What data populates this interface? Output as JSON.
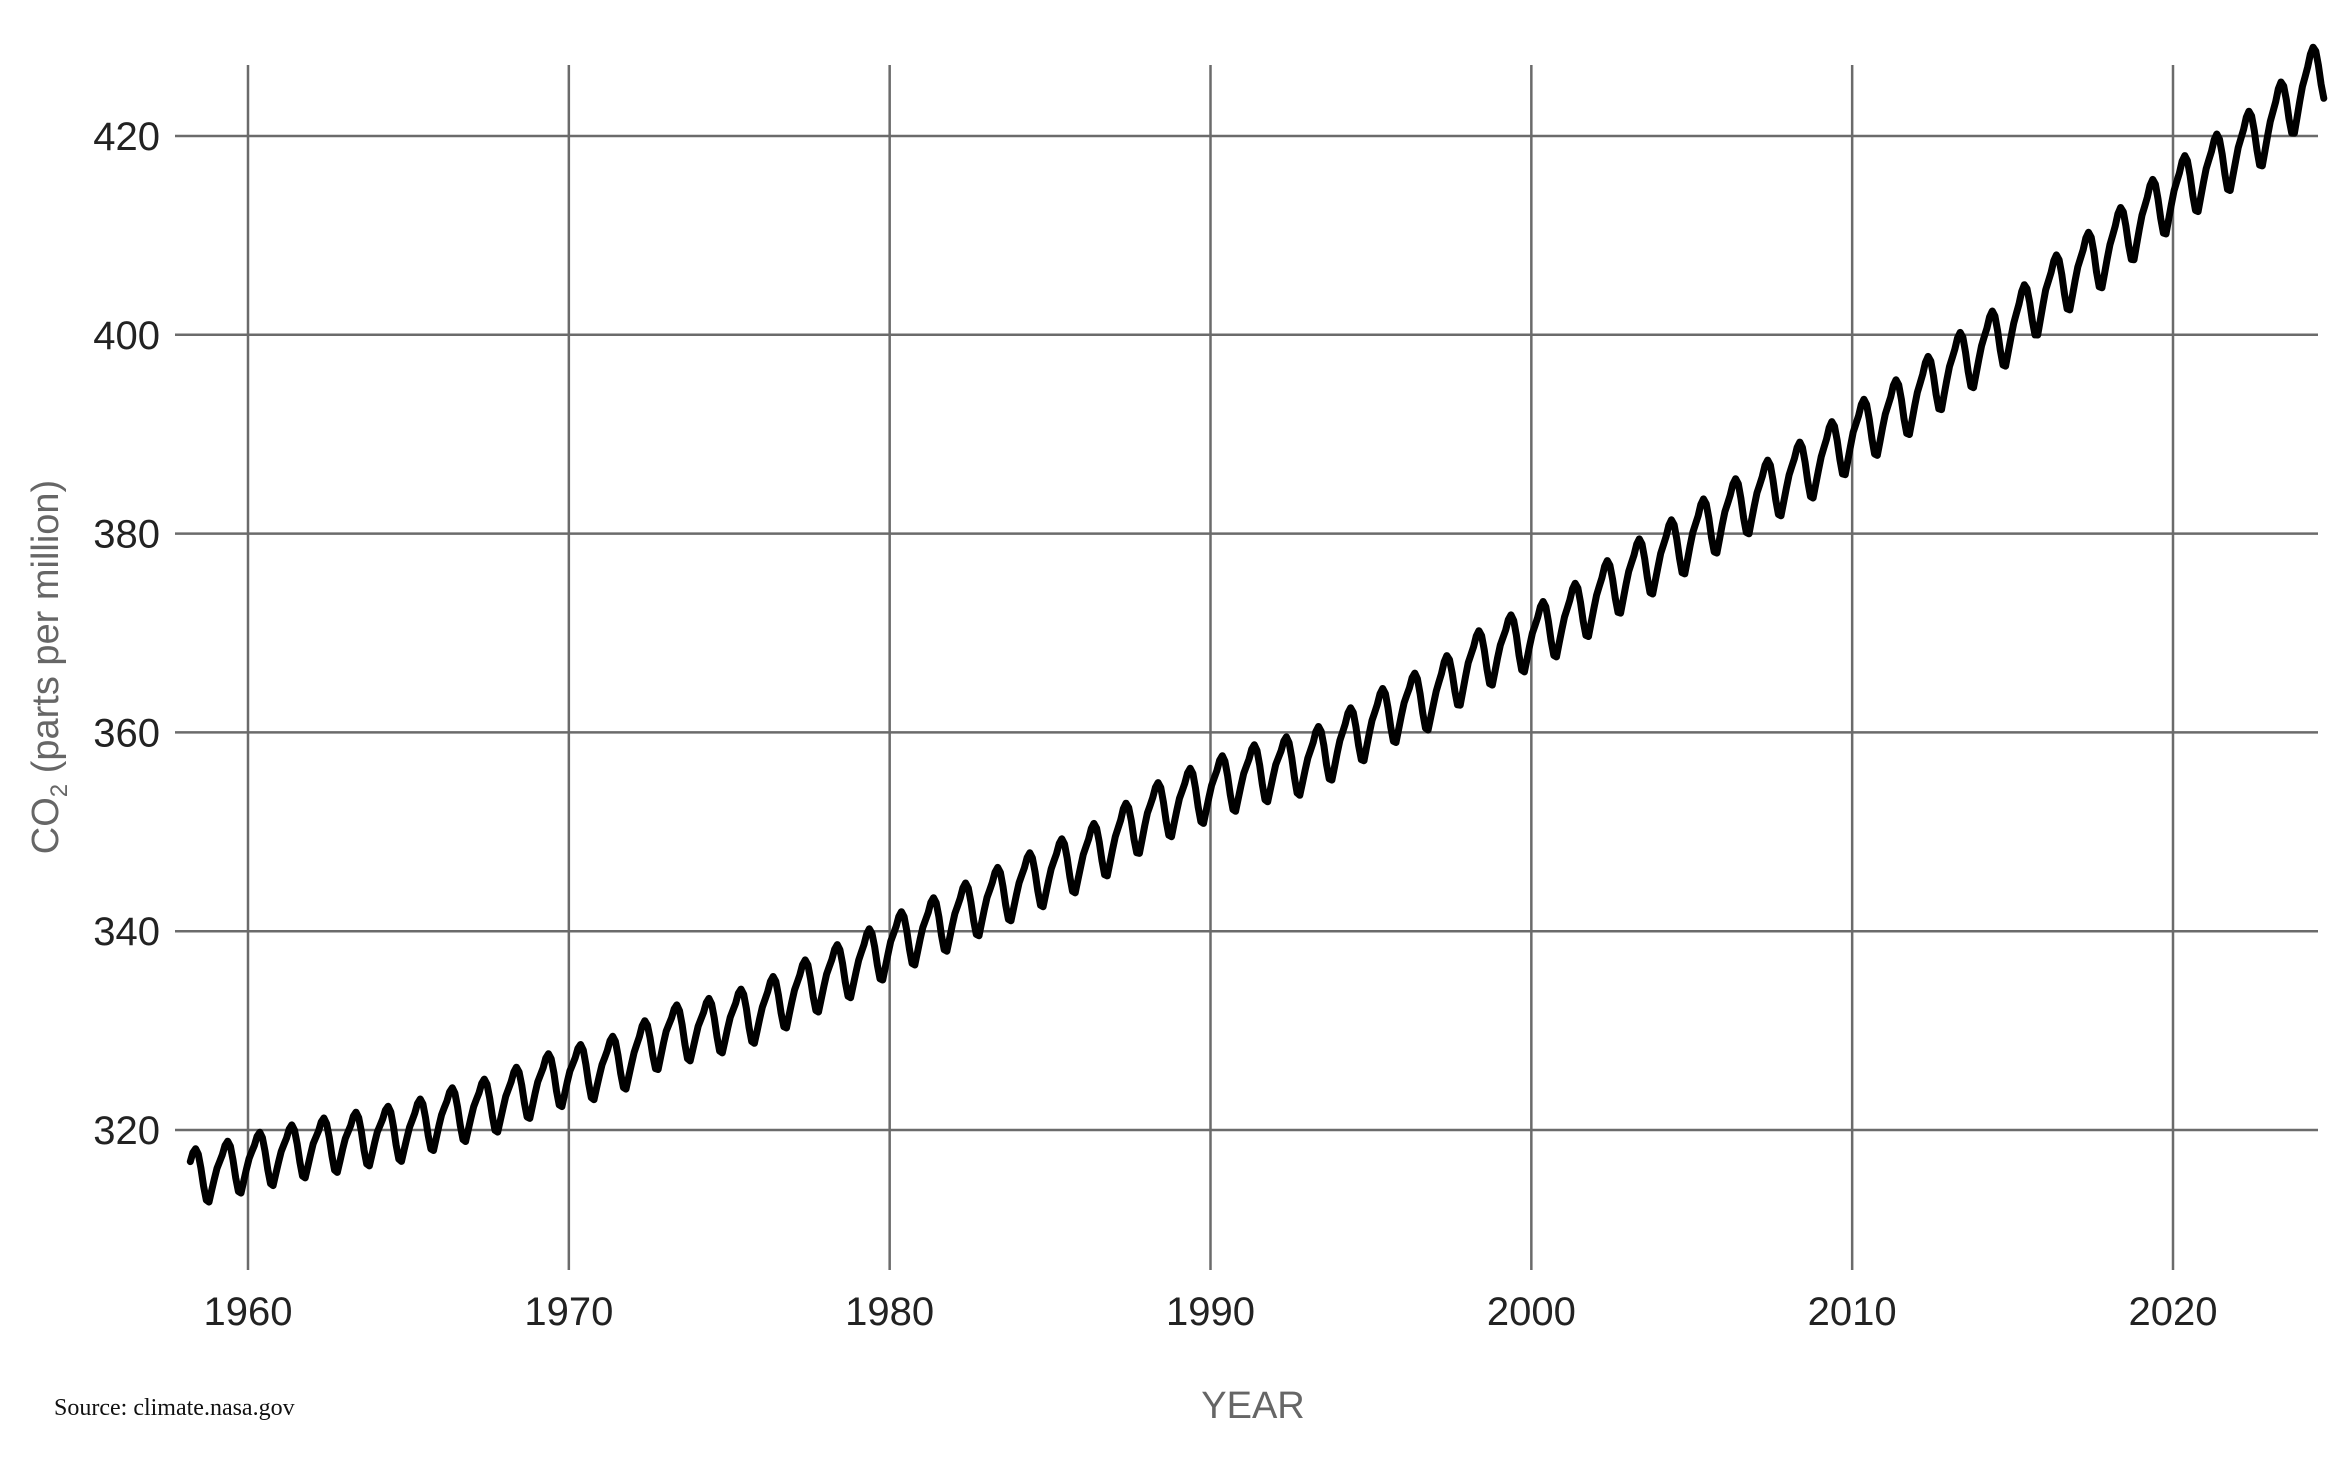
{
  "chart_data": {
    "type": "line",
    "title": "",
    "xlabel": "YEAR",
    "ylabel": {
      "prefix": "CO",
      "subscript": "2",
      "suffix": " (parts per million)"
    },
    "x_ticks": [
      1960,
      1970,
      1980,
      1990,
      2000,
      2010,
      2020
    ],
    "y_ticks": [
      320,
      340,
      360,
      380,
      400,
      420
    ],
    "xlim": [
      1958.2,
      2024.7
    ],
    "ylim": [
      306,
      427
    ],
    "grid": true,
    "legend": "none",
    "line_color": "#000000",
    "grid_color": "#6b6b6b",
    "source": "Source: climate.nasa.gov",
    "series": [
      {
        "sampling": "annual mean (ppm); monthly seasonal cycle applied by the plot script",
        "x_start": 1958,
        "x_end": 2024,
        "values": [
          315.3,
          315.9,
          316.9,
          317.6,
          318.4,
          318.9,
          319.6,
          320.0,
          321.3,
          322.1,
          323.1,
          324.6,
          325.7,
          326.3,
          327.5,
          329.7,
          330.2,
          331.1,
          332.1,
          333.8,
          335.4,
          336.8,
          338.7,
          340.1,
          341.5,
          343.1,
          344.6,
          346.0,
          347.4,
          349.2,
          351.6,
          353.1,
          354.4,
          355.6,
          356.5,
          357.1,
          358.9,
          360.9,
          362.7,
          363.8,
          366.7,
          368.5,
          369.7,
          371.3,
          373.5,
          375.9,
          377.7,
          379.8,
          381.9,
          383.8,
          385.6,
          387.4,
          389.9,
          391.7,
          393.9,
          396.5,
          398.6,
          400.8,
          404.2,
          406.5,
          408.7,
          411.7,
          414.2,
          416.4,
          418.5,
          421.1,
          424.6
        ]
      }
    ]
  }
}
